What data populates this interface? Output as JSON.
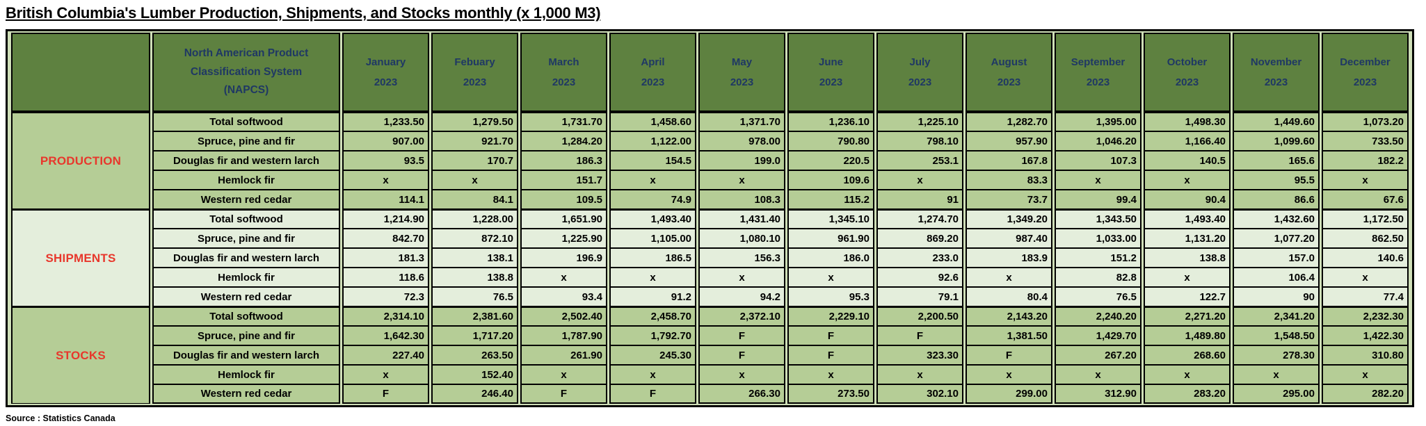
{
  "title": "British Columbia's Lumber Production, Shipments, and Stocks monthly (x 1,000 M3)",
  "source": "Source : Statistics Canada",
  "colors": {
    "header_bg": "#5e8140",
    "header_text": "#1f3864",
    "section_medium_bg": "#b5cd96",
    "section_light_bg": "#e4eedc",
    "section_label_text": "#e8372c",
    "frame_gap": "#cfdfb8",
    "value_text": "#000000"
  },
  "table": {
    "napcs_header": "North American Product Classification System (NAPCS)",
    "months": [
      {
        "name": "January",
        "year": "2023"
      },
      {
        "name": "Febuary",
        "year": "2023"
      },
      {
        "name": "March",
        "year": "2023"
      },
      {
        "name": "April",
        "year": "2023"
      },
      {
        "name": "May",
        "year": "2023"
      },
      {
        "name": "June",
        "year": "2023"
      },
      {
        "name": "July",
        "year": "2023"
      },
      {
        "name": "August",
        "year": "2023"
      },
      {
        "name": "September",
        "year": "2023"
      },
      {
        "name": "October",
        "year": "2023"
      },
      {
        "name": "November",
        "year": "2023"
      },
      {
        "name": "December",
        "year": "2023"
      }
    ],
    "sections": [
      {
        "name": "PRODUCTION",
        "shade": "medium",
        "rows": [
          {
            "label": "Total softwood",
            "values": [
              "1,233.50",
              "1,279.50",
              "1,731.70",
              "1,458.60",
              "1,371.70",
              "1,236.10",
              "1,225.10",
              "1,282.70",
              "1,395.00",
              "1,498.30",
              "1,449.60",
              "1,073.20"
            ]
          },
          {
            "label": "Spruce, pine and fir",
            "values": [
              "907.00",
              "921.70",
              "1,284.20",
              "1,122.00",
              "978.00",
              "790.80",
              "798.10",
              "957.90",
              "1,046.20",
              "1,166.40",
              "1,099.60",
              "733.50"
            ]
          },
          {
            "label": "Douglas fir and western larch",
            "values": [
              "93.5",
              "170.7",
              "186.3",
              "154.5",
              "199.0",
              "220.5",
              "253.1",
              "167.8",
              "107.3",
              "140.5",
              "165.6",
              "182.2"
            ]
          },
          {
            "label": "Hemlock fir",
            "values": [
              "x",
              "x",
              "151.7",
              "x",
              "x",
              "109.6",
              "x",
              "83.3",
              "x",
              "x",
              "95.5",
              "x"
            ]
          },
          {
            "label": "Western red cedar",
            "values": [
              "114.1",
              "84.1",
              "109.5",
              "74.9",
              "108.3",
              "115.2",
              "91",
              "73.7",
              "99.4",
              "90.4",
              "86.6",
              "67.6"
            ]
          }
        ]
      },
      {
        "name": "SHIPMENTS",
        "shade": "light",
        "rows": [
          {
            "label": "Total softwood",
            "values": [
              "1,214.90",
              "1,228.00",
              "1,651.90",
              "1,493.40",
              "1,431.40",
              "1,345.10",
              "1,274.70",
              "1,349.20",
              "1,343.50",
              "1,493.40",
              "1,432.60",
              "1,172.50"
            ]
          },
          {
            "label": "Spruce, pine and fir",
            "values": [
              "842.70",
              "872.10",
              "1,225.90",
              "1,105.00",
              "1,080.10",
              "961.90",
              "869.20",
              "987.40",
              "1,033.00",
              "1,131.20",
              "1,077.20",
              "862.50"
            ]
          },
          {
            "label": "Douglas fir and western larch",
            "values": [
              "181.3",
              "138.1",
              "196.9",
              "186.5",
              "156.3",
              "186.0",
              "233.0",
              "183.9",
              "151.2",
              "138.8",
              "157.0",
              "140.6"
            ]
          },
          {
            "label": "Hemlock fir",
            "values": [
              "118.6",
              "138.8",
              "x",
              "x",
              "x",
              "x",
              "92.6",
              "x",
              "82.8",
              "x",
              "106.4",
              "x"
            ]
          },
          {
            "label": "Western red cedar",
            "values": [
              "72.3",
              "76.5",
              "93.4",
              "91.2",
              "94.2",
              "95.3",
              "79.1",
              "80.4",
              "76.5",
              "122.7",
              "90",
              "77.4"
            ]
          }
        ]
      },
      {
        "name": "STOCKS",
        "shade": "medium",
        "rows": [
          {
            "label": "Total softwood",
            "values": [
              "2,314.10",
              "2,381.60",
              "2,502.40",
              "2,458.70",
              "2,372.10",
              "2,229.10",
              "2,200.50",
              "2,143.20",
              "2,240.20",
              "2,271.20",
              "2,341.20",
              "2,232.30"
            ]
          },
          {
            "label": "Spruce, pine and fir",
            "values": [
              "1,642.30",
              "1,717.20",
              "1,787.90",
              "1,792.70",
              "F",
              "F",
              "F",
              "1,381.50",
              "1,429.70",
              "1,489.80",
              "1,548.50",
              "1,422.30"
            ]
          },
          {
            "label": "Douglas fir and western larch",
            "values": [
              "227.40",
              "263.50",
              "261.90",
              "245.30",
              "F",
              "F",
              "323.30",
              "F",
              "267.20",
              "268.60",
              "278.30",
              "310.80"
            ]
          },
          {
            "label": "Hemlock fir",
            "values": [
              "x",
              "152.40",
              "x",
              "x",
              "x",
              "x",
              "x",
              "x",
              "x",
              "x",
              "x",
              "x"
            ]
          },
          {
            "label": "Western red cedar",
            "values": [
              "F",
              "246.40",
              "F",
              "F",
              "266.30",
              "273.50",
              "302.10",
              "299.00",
              "312.90",
              "283.20",
              "295.00",
              "282.20"
            ]
          }
        ]
      }
    ]
  }
}
